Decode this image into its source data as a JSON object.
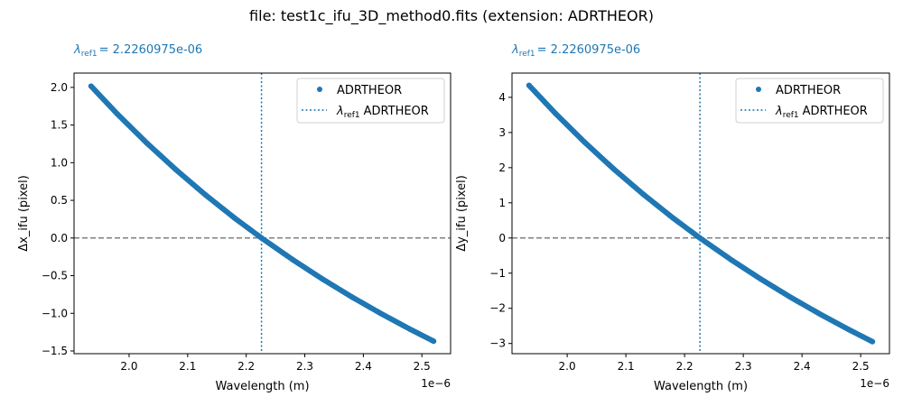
{
  "title": "file: test1c_ifu_3D_method0.fits (extension: ADRTHEOR)",
  "chart_data": [
    {
      "type": "scatter",
      "annotation": "= 2.2260975e-06",
      "annotation_symbol": "λ",
      "annotation_sub": "ref1",
      "xlabel": "Wavelength (m)",
      "ylabel": "Δx_ifu (pixel)",
      "x_offset_label": "1e−6",
      "xlim": [
        1.906,
        2.549
      ],
      "ylim": [
        -1.536,
        2.19
      ],
      "xticks": [
        2.0,
        2.1,
        2.2,
        2.3,
        2.4,
        2.5
      ],
      "yticks": [
        -1.5,
        -1.0,
        -0.5,
        0.0,
        0.5,
        1.0,
        1.5,
        2.0
      ],
      "ref_wavelength": 2.2260975,
      "zero_line": 0,
      "legend": {
        "placement": "top-right",
        "entries": [
          "ADRTHEOR",
          "ADRTHEOR"
        ],
        "ref_prefix": "λ",
        "ref_sub": "ref1"
      },
      "color": "#1f77b4",
      "x": [
        1.935,
        1.98,
        2.03,
        2.08,
        2.13,
        2.18,
        2.2261,
        2.28,
        2.33,
        2.38,
        2.43,
        2.48,
        2.52
      ],
      "y": [
        2.017,
        1.646,
        1.263,
        0.907,
        0.575,
        0.266,
        0,
        -0.291,
        -0.544,
        -0.781,
        -1.003,
        -1.212,
        -1.37
      ]
    },
    {
      "type": "scatter",
      "annotation": "= 2.2260975e-06",
      "annotation_symbol": "λ",
      "annotation_sub": "ref1",
      "xlabel": "Wavelength (m)",
      "ylabel": "Δy_ifu (pixel)",
      "x_offset_label": "1e−6",
      "xlim": [
        1.906,
        2.549
      ],
      "ylim": [
        -3.29,
        4.69
      ],
      "xticks": [
        2.0,
        2.1,
        2.2,
        2.3,
        2.4,
        2.5
      ],
      "yticks": [
        -3,
        -2,
        -1,
        0,
        1,
        2,
        3,
        4
      ],
      "ref_wavelength": 2.2260975,
      "zero_line": 0,
      "legend": {
        "placement": "top-right",
        "entries": [
          "ADRTHEOR",
          "ADRTHEOR"
        ],
        "ref_prefix": "λ",
        "ref_sub": "ref1"
      },
      "color": "#1f77b4",
      "x": [
        1.935,
        1.98,
        2.03,
        2.08,
        2.13,
        2.18,
        2.2261,
        2.28,
        2.33,
        2.38,
        2.43,
        2.48,
        2.52
      ],
      "y": [
        4.341,
        3.543,
        2.718,
        1.951,
        1.238,
        0.573,
        0,
        -0.627,
        -1.17,
        -1.68,
        -2.158,
        -2.607,
        -2.948
      ]
    }
  ]
}
